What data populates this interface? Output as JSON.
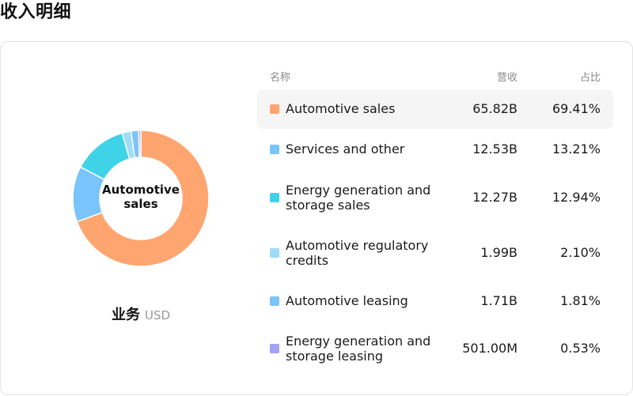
{
  "page": {
    "title": "收入明细"
  },
  "donut": {
    "center_label": "Automotive sales",
    "caption_main": "业务",
    "caption_unit": "USD"
  },
  "table": {
    "headers": {
      "name": "名称",
      "revenue": "营收",
      "share": "占比"
    },
    "rows": [
      {
        "name": "Automotive sales",
        "revenue": "65.82B",
        "share": "69.41%",
        "color": "#FFA56F",
        "highlighted": true
      },
      {
        "name": "Services and other",
        "revenue": "12.53B",
        "share": "13.21%",
        "color": "#79C4FA",
        "highlighted": false
      },
      {
        "name": "Energy generation and storage sales",
        "revenue": "12.27B",
        "share": "12.94%",
        "color": "#3FD3E8",
        "highlighted": false
      },
      {
        "name": "Automotive regulatory credits",
        "revenue": "1.99B",
        "share": "2.10%",
        "color": "#9EDCF7",
        "highlighted": false
      },
      {
        "name": "Automotive leasing",
        "revenue": "1.71B",
        "share": "1.81%",
        "color": "#7CC3F7",
        "highlighted": false
      },
      {
        "name": "Energy generation and storage leasing",
        "revenue": "501.00M",
        "share": "0.53%",
        "color": "#A3A2F5",
        "highlighted": false
      }
    ]
  },
  "chart_data": {
    "type": "pie",
    "categories": [
      "Automotive sales",
      "Services and other",
      "Energy generation and storage sales",
      "Automotive regulatory credits",
      "Automotive leasing",
      "Energy generation and storage leasing"
    ],
    "values": [
      65.82,
      12.53,
      12.27,
      1.99,
      1.71,
      0.501
    ],
    "percentages": [
      69.41,
      13.21,
      12.94,
      2.1,
      1.81,
      0.53
    ],
    "unit": "USD",
    "colors": [
      "#FFA56F",
      "#79C4FA",
      "#3FD3E8",
      "#9EDCF7",
      "#7CC3F7",
      "#A3A2F5"
    ],
    "donut": true,
    "selected": "Automotive sales"
  }
}
